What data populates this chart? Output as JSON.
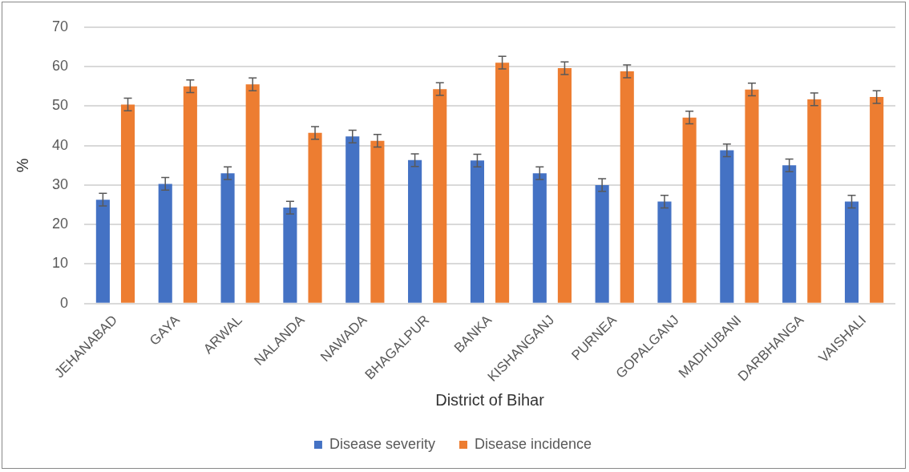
{
  "chart_data": {
    "type": "bar",
    "xlabel": "District of Bihar",
    "ylabel": "%",
    "categories": [
      "JEHANABAD",
      "GAYA",
      "ARWAL",
      "NALANDA",
      "NAWADA",
      "BHAGALPUR",
      "BANKA",
      "KISHANGANJ",
      "PURNEA",
      "GOPALGANJ",
      "MADHUBANI",
      "DARBHANGA",
      "VAISHALI"
    ],
    "series": [
      {
        "name": "Disease severity",
        "color": "#4472c4",
        "values": [
          26.3,
          30.3,
          33,
          24.3,
          42.3,
          36.3,
          36.2,
          33,
          30,
          25.8,
          38.8,
          35,
          25.8
        ],
        "errors": [
          1.6,
          1.6,
          1.6,
          1.6,
          1.6,
          1.6,
          1.6,
          1.6,
          1.6,
          1.6,
          1.6,
          1.6,
          1.6
        ]
      },
      {
        "name": "Disease incidence",
        "color": "#ed7d31",
        "values": [
          50.4,
          55,
          55.5,
          43.2,
          41.2,
          54.3,
          61,
          59.6,
          58.8,
          47.1,
          54.2,
          51.7,
          52.3
        ],
        "errors": [
          1.6,
          1.6,
          1.6,
          1.6,
          1.6,
          1.6,
          1.6,
          1.6,
          1.6,
          1.6,
          1.6,
          1.6,
          1.6
        ]
      }
    ],
    "ylim": [
      0,
      70
    ],
    "yticks": [
      0,
      10,
      20,
      30,
      40,
      50,
      60,
      70
    ],
    "grid": "y",
    "legend": "bottom"
  }
}
